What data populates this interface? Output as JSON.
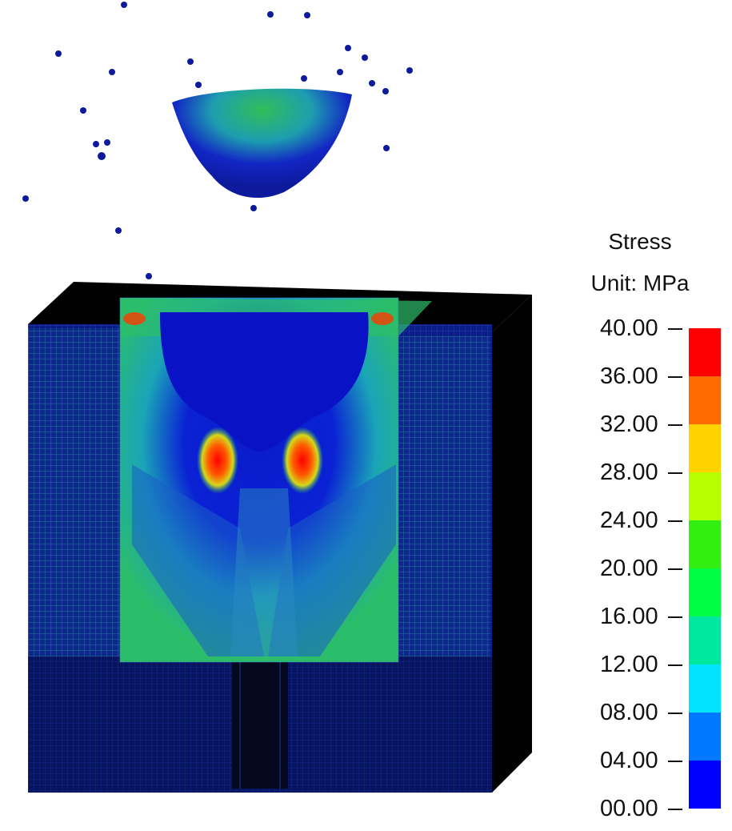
{
  "legend": {
    "title": "Stress",
    "unit": "Unit: MPa",
    "ticks": [
      "40.00",
      "36.00",
      "32.00",
      "28.00",
      "24.00",
      "20.00",
      "16.00",
      "12.00",
      "08.00",
      "04.00",
      "00.00"
    ],
    "bands": [
      {
        "color": "#ff0000"
      },
      {
        "color": "#ff6a00"
      },
      {
        "color": "#ffd200"
      },
      {
        "color": "#b5ff00"
      },
      {
        "color": "#33ee11"
      },
      {
        "color": "#00ff44"
      },
      {
        "color": "#00e8a0"
      },
      {
        "color": "#00e4ff"
      },
      {
        "color": "#0078ff"
      },
      {
        "color": "#0000ff"
      }
    ]
  },
  "colors": {
    "block_dark": "#000000",
    "mesh_base": "#0a1a7a",
    "low_stress": "#0014c8",
    "mid_stress": "#2ea7c6",
    "high_stress": "#ff2a00"
  }
}
